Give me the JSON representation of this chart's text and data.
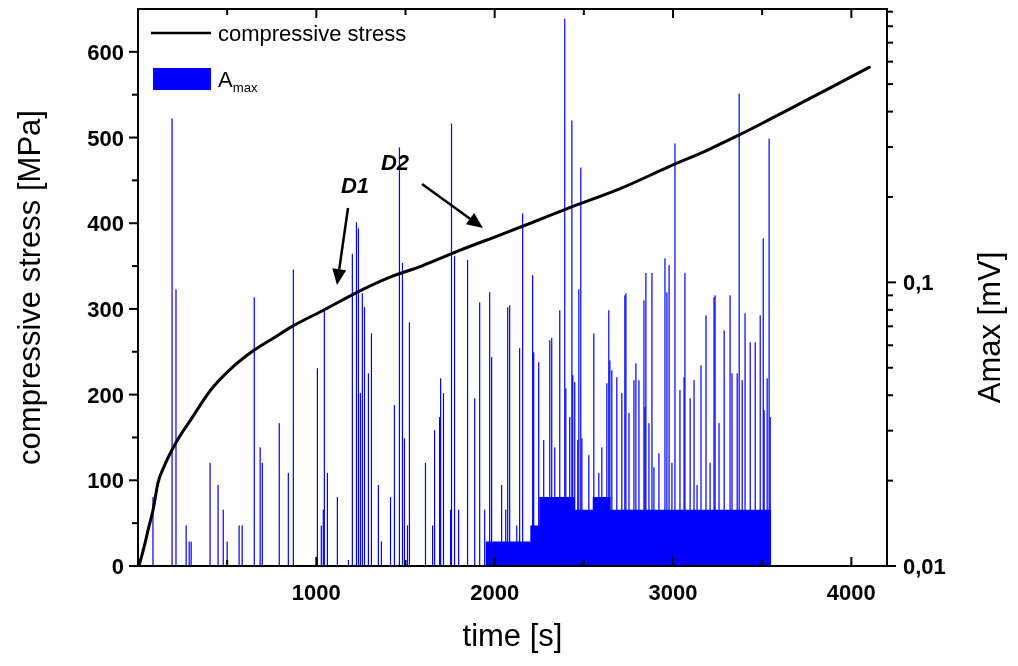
{
  "chart_data": {
    "type": "line",
    "xlabel": "time [s]",
    "ylabel": "compressive stress [MPa]",
    "y2label": "Amax [mV]",
    "xlim": [
      0,
      4200
    ],
    "xticks": [
      {
        "value": 500,
        "label": null
      },
      1000,
      {
        "value": 1500,
        "label": null
      },
      2000,
      {
        "value": 2500,
        "label": null
      },
      3000,
      {
        "value": 3500,
        "label": null
      },
      4000
    ],
    "ylim": [
      0,
      650
    ],
    "yticks": [
      0,
      {
        "value": 50,
        "label": null
      },
      100,
      {
        "value": 150,
        "label": null
      },
      200,
      {
        "value": 250,
        "label": null
      },
      300,
      {
        "value": 350,
        "label": null
      },
      400,
      {
        "value": 450,
        "label": null
      },
      500,
      {
        "value": 550,
        "label": null
      },
      600
    ],
    "y2lim": [
      0.01,
      0.92
    ],
    "log": "y2",
    "y2ticks": [
      {
        "value": 0.01,
        "label": "0,01"
      },
      {
        "value": 0.02,
        "label": null
      },
      {
        "value": 0.03,
        "label": null
      },
      {
        "value": 0.04,
        "label": null
      },
      {
        "value": 0.05,
        "label": null
      },
      {
        "value": 0.06,
        "label": null
      },
      {
        "value": 0.07,
        "label": null
      },
      {
        "value": 0.08,
        "label": null
      },
      {
        "value": 0.09,
        "label": null
      },
      {
        "value": 0.1,
        "label": "0,1"
      },
      {
        "value": 0.2,
        "label": null
      },
      {
        "value": 0.3,
        "label": null
      },
      {
        "value": 0.4,
        "label": null
      },
      {
        "value": 0.5,
        "label": null
      },
      {
        "value": 0.6,
        "label": null
      },
      {
        "value": 0.7,
        "label": null
      },
      {
        "value": 0.8,
        "label": null
      },
      {
        "value": 0.9,
        "label": null
      }
    ],
    "legend": "top left",
    "grid": false,
    "annotations": [
      "D1",
      "D2"
    ],
    "series": [
      {
        "name": "A$_{max}$",
        "type": "bar",
        "axis": "y2",
        "color": "#0000ff",
        "x": [
          84,
          191,
          213,
          270,
          287,
          298,
          404,
          449,
          478,
          500,
          567,
          584,
          652,
          685,
          697,
          792,
          843,
          871,
          1006,
          1028,
          1039,
          1045,
          1062,
          1118,
          1180,
          1202,
          1225,
          1236,
          1247,
          1258,
          1270,
          1292,
          1309,
          1348,
          1365,
          1416,
          1438,
          1466,
          1483,
          1494,
          1511,
          1522,
          1612,
          1652,
          1663,
          1691,
          1697,
          1713,
          1753,
          1758,
          1775,
          1798,
          1848,
          1888,
          1916,
          1944,
          1972,
          1983,
          2039,
          2062,
          2073,
          2084,
          2124,
          2140,
          2157,
          2213,
          2219,
          2247,
          2275,
          2309,
          2320,
          2337,
          2365,
          2393,
          2399,
          2421,
          2433,
          2438,
          2449,
          2466,
          2472,
          2483,
          2489,
          2528,
          2556,
          2584,
          2601,
          2629,
          2640,
          2646,
          2657,
          2685,
          2713,
          2730,
          2736,
          2753,
          2781,
          2792,
          2809,
          2837,
          2843,
          2848,
          2865,
          2882,
          2893,
          2921,
          2955,
          2966,
          2978,
          2994,
          3011,
          3039,
          3062,
          3067,
          3096,
          3118,
          3135,
          3157,
          3185,
          3208,
          3230,
          3236,
          3258,
          3287,
          3320,
          3331,
          3360,
          3371,
          3388,
          3404,
          3433,
          3461,
          3489,
          3506,
          3511,
          3528,
          3539,
          3545
        ],
        "values": [
          0.0175,
          0.378,
          0.0945,
          0.0139,
          0.0122,
          0.0122,
          0.0231,
          0.0193,
          0.0158,
          0.0122,
          0.0139,
          0.0139,
          0.0886,
          0.0262,
          0.0231,
          0.0319,
          0.0213,
          0.111,
          0.0498,
          0.0139,
          0.0158,
          0.081,
          0.0213,
          0.0175,
          0.0105,
          0.126,
          0.163,
          0.155,
          0.0407,
          0.0915,
          0.0817,
          0.0478,
          0.0661,
          0.0193,
          0.0122,
          0.0175,
          0.0369,
          0.299,
          0.117,
          0.0282,
          0.0139,
          0.0723,
          0.0231,
          0.0139,
          0.0301,
          0.0335,
          0.0459,
          0.0407,
          0.0158,
          0.363,
          0.124,
          0.0158,
          0.12,
          0.039,
          0.085,
          0.0158,
          0.0923,
          0.0545,
          0.0193,
          0.0158,
          0.0817,
          0.083,
          0.0139,
          0.0586,
          0.175,
          0.106,
          0.0567,
          0.0523,
          0.0278,
          0.0625,
          0.0637,
          0.0262,
          0.0797,
          0.85,
          0.0423,
          0.0335,
          0.372,
          0.0471,
          0.0445,
          0.0278,
          0.0945,
          0.254,
          0.0282,
          0.0246,
          0.0661,
          0.0213,
          0.0262,
          0.0441,
          0.0797,
          0.0531,
          0.049,
          0.0463,
          0.0407,
          0.09,
          0.0915,
          0.0346,
          0.0452,
          0.0518,
          0.0452,
          0.0864,
          0.0363,
          0.108,
          0.0319,
          0.108,
          0.0223,
          0.025,
          0.1215,
          0.0923,
          0.115,
          0.0231,
          0.309,
          0.0417,
          0.0463,
          0.108,
          0.039,
          0.0452,
          0.0193,
          0.051,
          0.0765,
          0.0231,
          0.0886,
          0.09,
          0.0319,
          0.0678,
          0.09,
          0.0478,
          0.0478,
          0.463,
          0.0452,
          0.0778,
          0.0615,
          0.0615,
          0.0765,
          0.143,
          0.0354,
          0.0459,
          0.321,
          0.0335
        ]
      },
      {
        "type": "area",
        "axis": "y2",
        "color": "#0000ff",
        "x": [
          1950,
          2200,
          2200,
          2250,
          2250,
          2450,
          2450,
          2550,
          2550,
          2650,
          2650,
          3550
        ],
        "values": [
          0.0122,
          0.0122,
          0.0139,
          0.0139,
          0.0175,
          0.0175,
          0.0158,
          0.0158,
          0.0175,
          0.0175,
          0.0158,
          0.0158
        ]
      },
      {
        "name": "compressive stress",
        "color": "#000000",
        "x": [
          5,
          34,
          60,
          84,
          112,
          146,
          213,
          300,
          410,
          520,
          652,
          760,
          860,
          1045,
          1253,
          1400,
          1590,
          1800,
          2039,
          2200,
          2393,
          2700,
          2978,
          3200,
          3371,
          3550,
          3725,
          3900,
          4101
        ],
        "values": [
          0,
          22,
          45,
          65,
          97,
          116,
          144,
          172,
          206,
          230,
          252,
          266,
          279,
          299,
          322,
          336,
          350,
          368,
          387,
          400,
          416,
          440,
          466,
          486,
          503,
          522,
          541,
          560,
          582
        ]
      }
    ]
  }
}
